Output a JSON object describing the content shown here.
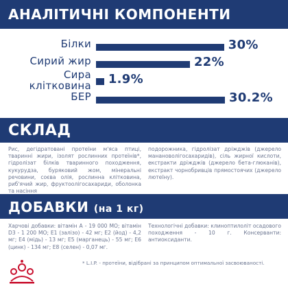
{
  "analytics": {
    "title": "АНАЛІТИЧНІ КОМПОНЕНТИ",
    "rows": [
      {
        "label": "Білки",
        "value": "30%",
        "percent": 30
      },
      {
        "label": "Сирий жир",
        "value": "22%",
        "percent": 22
      },
      {
        "label": "Сира\nклітковина",
        "value": "1.9%",
        "percent": 1.9
      },
      {
        "label": "БЕР",
        "value": "30.2%",
        "percent": 30.2
      }
    ]
  },
  "composition": {
    "title": "СКЛАД",
    "left": "Рис, дегідратовані протеїни м'яса птиці, тваринні жири, ізолят рослинних протеїнів*, гідролізат білків тваринного походження, кукурудза, буряковий жом, мінеральні речовини, соєва олія, рослинна клітковина, риб'ячий жир, фруктоолігосахариди, оболонка та насіння",
    "right": "подорожника, гідролізат дріжджів (джерело манановолігосахаридів), сіль жирної кислоти, екстракти дріжджів (джерело бета-глюканів), екстракт чорнобривців прямостоячих (джерело лютеїну)."
  },
  "additives": {
    "title": "ДОБАВКИ",
    "subtitle": "(на 1 кг)",
    "left": "Харчові добавки: вітамін А - 19 000 МО; вітамін D3 - 1 200 МО; Е1 (залізо) - 42 мг; Е2 (йод) - 4,2 мг; Е4 (мідь) - 13 мг; Е5 (марганець) - 55 мг; Е6 (цинк) - 134 мг; Е8 (селен) - 0,07 мг.",
    "right": "Технологічні добавки: клиноптилоліт осадового походження - 10 г. Консерванти: антиоксиданти."
  },
  "footnote": "* L.I.P. - протеїни, відібрані за принципом оптимальної засвоюваності.",
  "logo": {
    "icon": "royal-canin-crown-logo",
    "color": "#c8102e"
  },
  "colors": {
    "brand_blue": "#1f3b74",
    "body_text": "#6b7590",
    "logo_red": "#c8102e"
  }
}
